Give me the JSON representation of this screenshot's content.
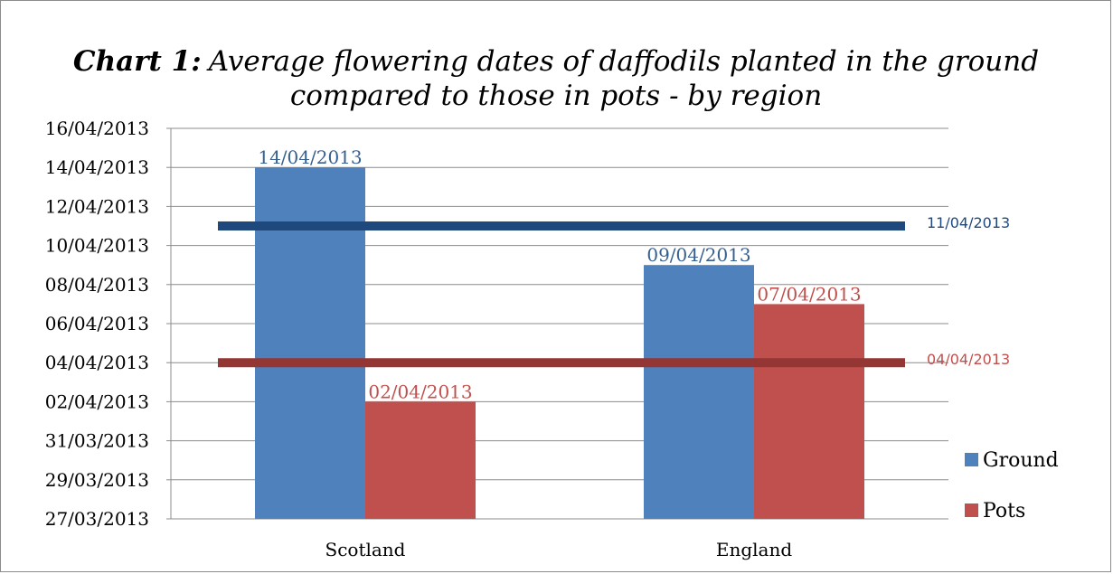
{
  "chart_data": {
    "type": "bar",
    "title_prefix": "Chart 1:",
    "title_line1": "Average flowering dates of daffodils planted in the ground",
    "title_line2": "compared to those in pots - by region",
    "categories": [
      "Scotland",
      "England"
    ],
    "series": [
      {
        "name": "Ground",
        "color": "#4f81bd",
        "values": [
          "2013-04-14",
          "2013-04-09"
        ],
        "labels": [
          "14/04/2013",
          "09/04/2013"
        ],
        "label_color": "#376092"
      },
      {
        "name": "Pots",
        "color": "#c0504d",
        "values": [
          "2013-04-02",
          "2013-04-07"
        ],
        "labels": [
          "02/04/2013",
          "07/04/2013"
        ],
        "label_color": "#c0504d"
      }
    ],
    "reference_lines": [
      {
        "value": "2013-04-11",
        "label": "11/04/2013",
        "color": "#1f497d"
      },
      {
        "value": "2013-04-04",
        "label": "04/04/2013",
        "color": "#943634",
        "label_color": "#c0504d"
      }
    ],
    "y_ticks": [
      "27/03/2013",
      "29/03/2013",
      "31/03/2013",
      "02/04/2013",
      "04/04/2013",
      "06/04/2013",
      "08/04/2013",
      "10/04/2013",
      "12/04/2013",
      "14/04/2013",
      "16/04/2013"
    ],
    "ylim": [
      "2013-03-27",
      "2013-04-16"
    ],
    "grid": true,
    "legend_position": "right"
  }
}
